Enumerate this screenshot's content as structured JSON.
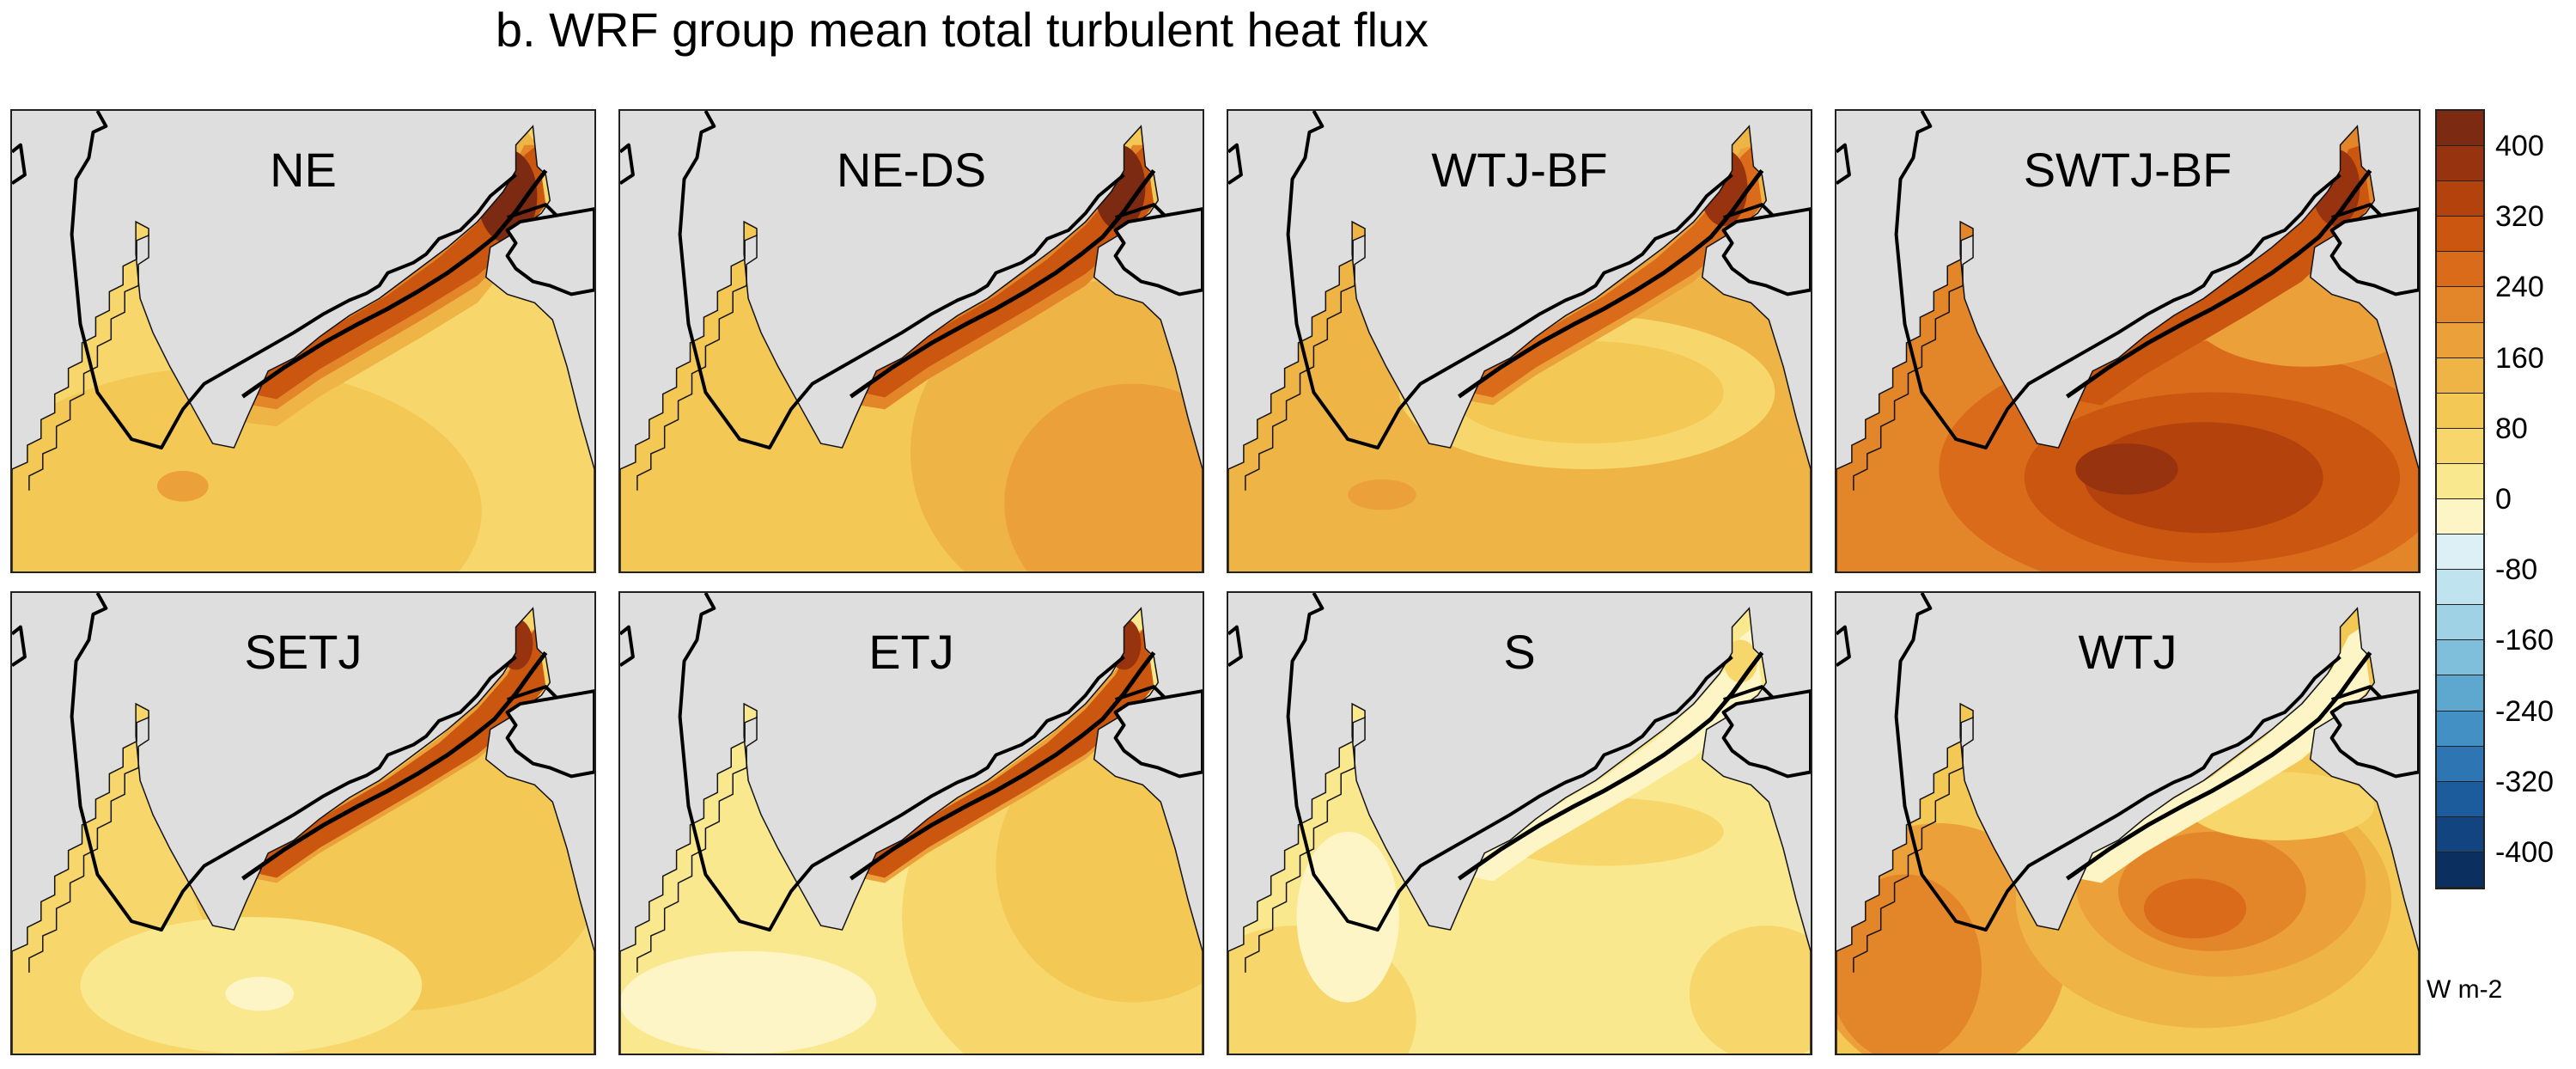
{
  "title": "b. WRF group mean total turbulent heat flux",
  "panels": [
    {
      "label": "NE",
      "pattern": "strong-coast"
    },
    {
      "label": "NE-DS",
      "pattern": "broad-east"
    },
    {
      "label": "WTJ-BF",
      "pattern": "moderate"
    },
    {
      "label": "SWTJ-BF",
      "pattern": "strong-south"
    },
    {
      "label": "SETJ",
      "pattern": "weak"
    },
    {
      "label": "ETJ",
      "pattern": "weak-east"
    },
    {
      "label": "S",
      "pattern": "weakest"
    },
    {
      "label": "WTJ",
      "pattern": "west-core"
    }
  ],
  "colorbar": {
    "units": "W m-2",
    "tick_labels": [
      "400",
      "320",
      "240",
      "160",
      "80",
      "0",
      "-80",
      "-160",
      "-240",
      "-320",
      "-400"
    ],
    "colors": [
      "#7d2a12",
      "#98330f",
      "#b4420d",
      "#cb560f",
      "#d96b1a",
      "#e3862a",
      "#eba03a",
      "#efb446",
      "#f3c855",
      "#f7d76b",
      "#fae88f",
      "#fdf5c6",
      "#dcf0f6",
      "#bfe3ef",
      "#a0d2e6",
      "#7fbfdc",
      "#5ea8d0",
      "#4290c4",
      "#2d76b3",
      "#1d5c9c",
      "#124580",
      "#0b3060"
    ]
  },
  "colors": {
    "land": "#dedede",
    "coast": "#000000",
    "frame": "#222222"
  }
}
